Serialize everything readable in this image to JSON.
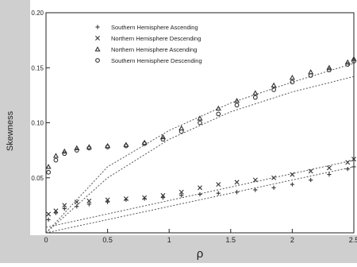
{
  "chart_data": {
    "type": "scatter",
    "xlabel": "ρ",
    "ylabel": "Skewness",
    "xlim": [
      0,
      2.5
    ],
    "ylim": [
      0,
      0.2
    ],
    "x_ticks": [
      "0",
      "0.5",
      "1",
      "1.5",
      "2",
      "2.5"
    ],
    "y_ticks": [
      "0.05",
      "0.10",
      "0.15",
      "0.20"
    ],
    "grid": false,
    "legend_position": "top-left",
    "series": [
      {
        "name": "Southern Hemisphere Ascending",
        "marker": "plus",
        "points": [
          [
            0.02,
            0.012
          ],
          [
            0.08,
            0.018
          ],
          [
            0.15,
            0.022
          ],
          [
            0.25,
            0.024
          ],
          [
            0.35,
            0.026
          ],
          [
            0.5,
            0.028
          ],
          [
            0.65,
            0.03
          ],
          [
            0.8,
            0.031
          ],
          [
            0.95,
            0.032
          ],
          [
            1.1,
            0.034
          ],
          [
            1.25,
            0.035
          ],
          [
            1.4,
            0.036
          ],
          [
            1.55,
            0.037
          ],
          [
            1.7,
            0.039
          ],
          [
            1.85,
            0.041
          ],
          [
            2.0,
            0.044
          ],
          [
            2.15,
            0.048
          ],
          [
            2.3,
            0.053
          ],
          [
            2.45,
            0.058
          ],
          [
            2.5,
            0.06
          ]
        ],
        "fit": [
          [
            0,
            0.0
          ],
          [
            2.5,
            0.06
          ]
        ]
      },
      {
        "name": "Northern Hemisphere Descending",
        "marker": "cross",
        "points": [
          [
            0.02,
            0.017
          ],
          [
            0.08,
            0.02
          ],
          [
            0.15,
            0.025
          ],
          [
            0.25,
            0.028
          ],
          [
            0.35,
            0.029
          ],
          [
            0.5,
            0.03
          ],
          [
            0.65,
            0.031
          ],
          [
            0.8,
            0.032
          ],
          [
            0.95,
            0.034
          ],
          [
            1.1,
            0.037
          ],
          [
            1.25,
            0.041
          ],
          [
            1.4,
            0.044
          ],
          [
            1.55,
            0.046
          ],
          [
            1.7,
            0.048
          ],
          [
            1.85,
            0.05
          ],
          [
            2.0,
            0.053
          ],
          [
            2.15,
            0.056
          ],
          [
            2.3,
            0.059
          ],
          [
            2.45,
            0.064
          ],
          [
            2.5,
            0.067
          ]
        ],
        "fit": [
          [
            0,
            0.005
          ],
          [
            2.5,
            0.066
          ]
        ]
      },
      {
        "name": "Northern Hemisphere Ascending",
        "marker": "triangle",
        "points": [
          [
            0.02,
            0.06
          ],
          [
            0.08,
            0.07
          ],
          [
            0.15,
            0.074
          ],
          [
            0.25,
            0.077
          ],
          [
            0.35,
            0.078
          ],
          [
            0.5,
            0.079
          ],
          [
            0.65,
            0.08
          ],
          [
            0.8,
            0.082
          ],
          [
            0.95,
            0.087
          ],
          [
            1.1,
            0.095
          ],
          [
            1.25,
            0.104
          ],
          [
            1.4,
            0.113
          ],
          [
            1.55,
            0.12
          ],
          [
            1.7,
            0.127
          ],
          [
            1.85,
            0.134
          ],
          [
            2.0,
            0.141
          ],
          [
            2.15,
            0.146
          ],
          [
            2.3,
            0.15
          ],
          [
            2.45,
            0.155
          ],
          [
            2.5,
            0.158
          ]
        ],
        "fit": [
          [
            0,
            0.0
          ],
          [
            0.5,
            0.05
          ],
          [
            1.0,
            0.085
          ],
          [
            1.5,
            0.11
          ],
          [
            2.0,
            0.128
          ],
          [
            2.5,
            0.142
          ]
        ]
      },
      {
        "name": "Southern Hemisphere Descending",
        "marker": "circle",
        "points": [
          [
            0.02,
            0.055
          ],
          [
            0.08,
            0.066
          ],
          [
            0.15,
            0.072
          ],
          [
            0.25,
            0.075
          ],
          [
            0.35,
            0.077
          ],
          [
            0.5,
            0.078
          ],
          [
            0.65,
            0.079
          ],
          [
            0.8,
            0.081
          ],
          [
            0.95,
            0.085
          ],
          [
            1.1,
            0.092
          ],
          [
            1.25,
            0.1
          ],
          [
            1.4,
            0.108
          ],
          [
            1.55,
            0.116
          ],
          [
            1.7,
            0.123
          ],
          [
            1.85,
            0.13
          ],
          [
            2.0,
            0.137
          ],
          [
            2.15,
            0.143
          ],
          [
            2.3,
            0.148
          ],
          [
            2.45,
            0.153
          ],
          [
            2.5,
            0.156
          ]
        ],
        "fit": [
          [
            0,
            0.0
          ],
          [
            0.5,
            0.06
          ],
          [
            1.0,
            0.093
          ],
          [
            1.5,
            0.118
          ],
          [
            2.0,
            0.137
          ],
          [
            2.5,
            0.154
          ]
        ]
      }
    ]
  }
}
